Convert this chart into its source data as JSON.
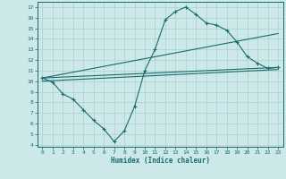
{
  "title": "",
  "xlabel": "Humidex (Indice chaleur)",
  "ylabel": "",
  "bg_color": "#cce8e8",
  "line_color": "#1a6b6b",
  "grid_color": "#aacfcf",
  "xlim": [
    -0.5,
    23.5
  ],
  "ylim": [
    3.8,
    17.5
  ],
  "xticks": [
    0,
    1,
    2,
    3,
    4,
    5,
    6,
    7,
    8,
    9,
    10,
    11,
    12,
    13,
    14,
    15,
    16,
    17,
    18,
    19,
    20,
    21,
    22,
    23
  ],
  "yticks": [
    4,
    5,
    6,
    7,
    8,
    9,
    10,
    11,
    12,
    13,
    14,
    15,
    16,
    17
  ],
  "line1_x": [
    0,
    1,
    2,
    3,
    4,
    5,
    6,
    7,
    8,
    9,
    10,
    11,
    12,
    13,
    14,
    15,
    16,
    17,
    18,
    19,
    20,
    21,
    22,
    23
  ],
  "line1_y": [
    10.3,
    9.9,
    8.8,
    8.3,
    7.3,
    6.3,
    5.5,
    4.3,
    5.3,
    7.6,
    11.0,
    13.0,
    15.8,
    16.6,
    17.0,
    16.3,
    15.5,
    15.3,
    14.8,
    13.7,
    12.3,
    11.7,
    11.2,
    11.3
  ],
  "line2_x": [
    0,
    23
  ],
  "line2_y": [
    10.3,
    11.3
  ],
  "line3_x": [
    0,
    23
  ],
  "line3_y": [
    10.0,
    11.1
  ],
  "line4_x": [
    0,
    23
  ],
  "line4_y": [
    10.3,
    14.5
  ]
}
